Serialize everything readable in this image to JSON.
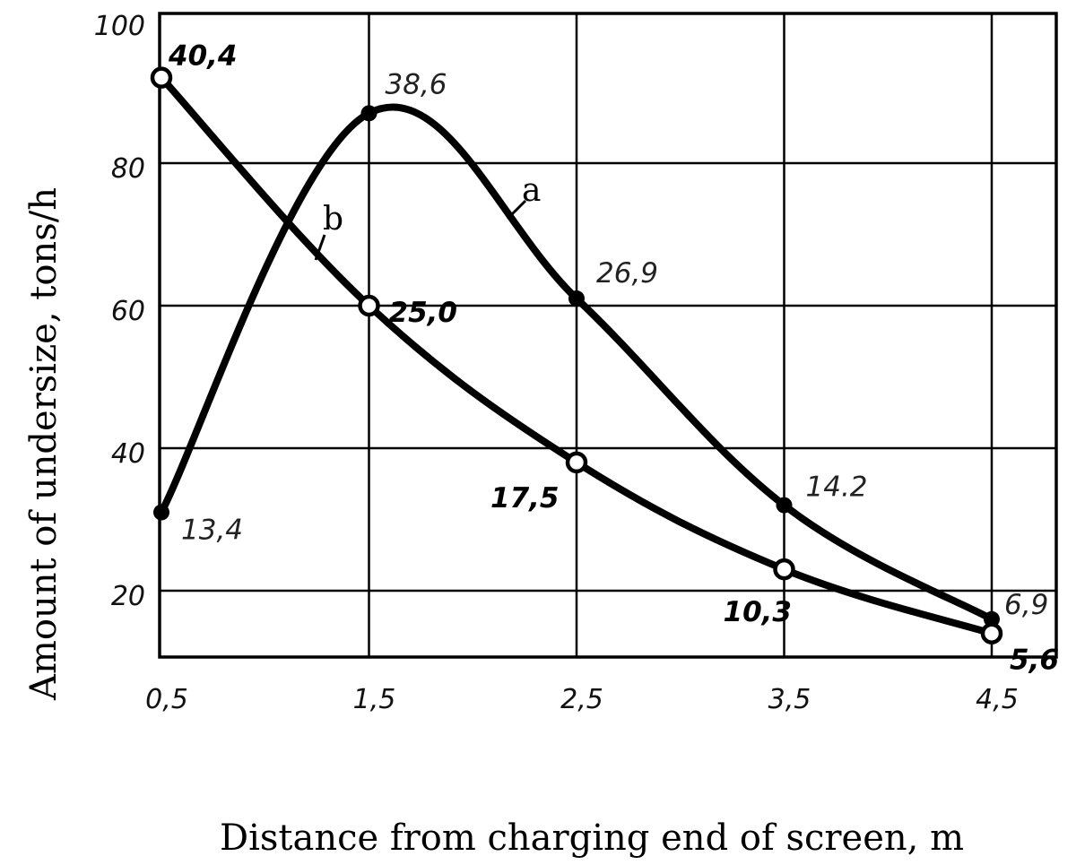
{
  "chart_data": {
    "type": "line",
    "xlabel": "Distance from charging end of screen, m",
    "ylabel": "Amount of undersize,   tons/h",
    "x_tick_labels": [
      "0,5",
      "1,5",
      "2,5",
      "3,5",
      "4,5"
    ],
    "y_tick_labels": [
      "20",
      "40",
      "60",
      "80",
      "100"
    ],
    "xlim": [
      0.5,
      4.75
    ],
    "ylim": [
      0,
      102
    ],
    "x_gridlines": [
      1.5,
      2.5,
      3.5,
      4.5
    ],
    "y_gridlines": [
      20,
      40,
      60,
      80
    ],
    "grid": true,
    "series": [
      {
        "name": "a",
        "marker": "filled",
        "x": [
          0.5,
          1.5,
          2.5,
          3.5,
          4.5
        ],
        "y": [
          31,
          87,
          61,
          32,
          16
        ],
        "labels": [
          "13,4",
          "38,6",
          "26,9",
          "14.2",
          "6,9"
        ]
      },
      {
        "name": "b",
        "marker": "open",
        "x": [
          0.5,
          1.5,
          2.5,
          3.5,
          4.5
        ],
        "y": [
          92,
          60,
          38,
          23,
          14
        ],
        "labels": [
          "40,4",
          "25,0",
          "17,5",
          "10,3",
          "5,6"
        ]
      }
    ]
  }
}
